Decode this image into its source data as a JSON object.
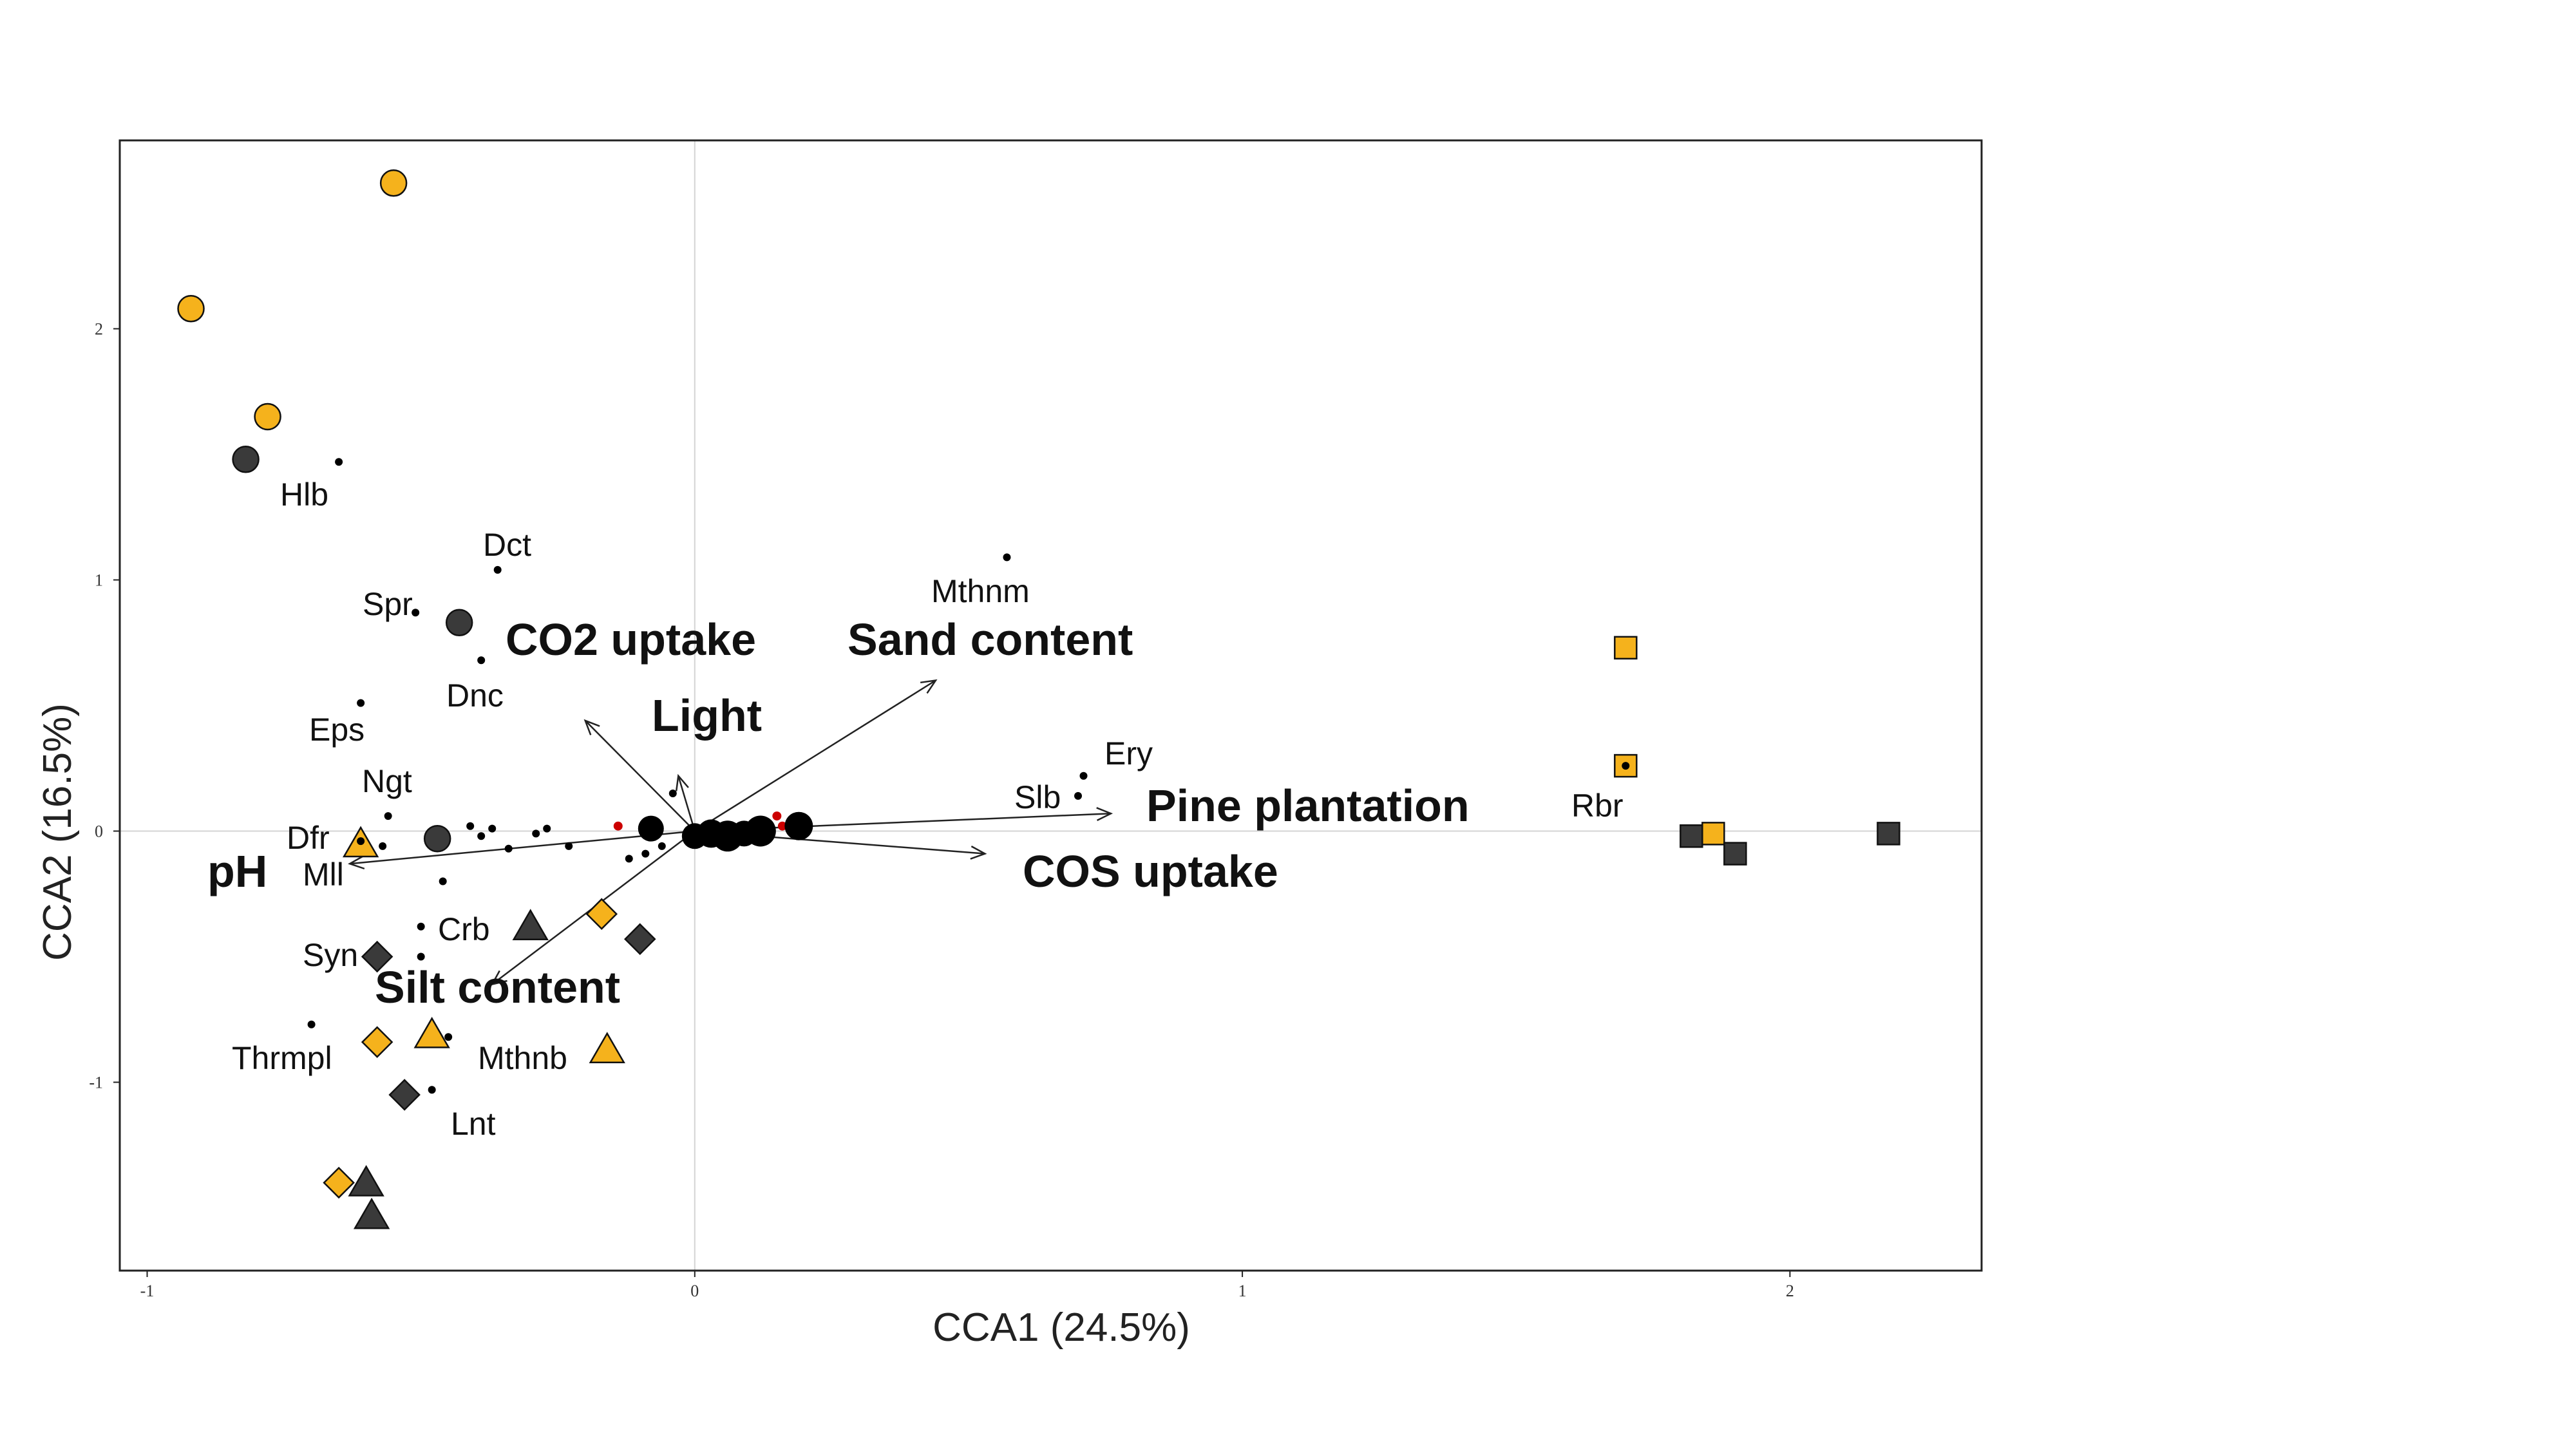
{
  "chart_data": {
    "type": "scatter",
    "xlabel": "CCA1 (24.5%)",
    "ylabel": "CCA2 (16.5%)",
    "xlim": [
      -1.05,
      2.35
    ],
    "ylim": [
      -1.75,
      2.75
    ],
    "x_ticks": [
      -1,
      0,
      1,
      2
    ],
    "y_ticks": [
      -1,
      0,
      1,
      2
    ],
    "zero_lines": true,
    "colors": {
      "orange": "#F5B21C",
      "dark": "#3A3A3A",
      "black": "#000000",
      "red": "#CC0000"
    },
    "sites": [
      {
        "x": -0.55,
        "y": 2.58,
        "shape": "circle",
        "color": "orange"
      },
      {
        "x": -0.92,
        "y": 2.08,
        "shape": "circle",
        "color": "orange"
      },
      {
        "x": -0.78,
        "y": 1.65,
        "shape": "circle",
        "color": "orange"
      },
      {
        "x": -0.82,
        "y": 1.48,
        "shape": "circle",
        "color": "dark"
      },
      {
        "x": -0.43,
        "y": 0.83,
        "shape": "circle",
        "color": "dark"
      },
      {
        "x": -0.47,
        "y": -0.03,
        "shape": "circle",
        "color": "dark"
      },
      {
        "x": -0.61,
        "y": -0.05,
        "shape": "triangle",
        "color": "orange"
      },
      {
        "x": -0.3,
        "y": -0.38,
        "shape": "triangle",
        "color": "dark"
      },
      {
        "x": -0.48,
        "y": -0.81,
        "shape": "triangle",
        "color": "orange"
      },
      {
        "x": -0.16,
        "y": -0.87,
        "shape": "triangle",
        "color": "orange"
      },
      {
        "x": -0.6,
        "y": -1.4,
        "shape": "triangle",
        "color": "dark"
      },
      {
        "x": -0.59,
        "y": -1.53,
        "shape": "triangle",
        "color": "dark"
      },
      {
        "x": -0.17,
        "y": -0.33,
        "shape": "diamond",
        "color": "orange"
      },
      {
        "x": -0.1,
        "y": -0.43,
        "shape": "diamond",
        "color": "dark"
      },
      {
        "x": -0.58,
        "y": -0.5,
        "shape": "diamond",
        "color": "dark"
      },
      {
        "x": -0.58,
        "y": -0.84,
        "shape": "diamond",
        "color": "orange"
      },
      {
        "x": -0.53,
        "y": -1.05,
        "shape": "diamond",
        "color": "dark"
      },
      {
        "x": -0.65,
        "y": -1.4,
        "shape": "diamond",
        "color": "orange"
      },
      {
        "x": 1.7,
        "y": 0.73,
        "shape": "square",
        "color": "orange"
      },
      {
        "x": 1.7,
        "y": 0.26,
        "shape": "square",
        "color": "orange"
      },
      {
        "x": 1.82,
        "y": -0.02,
        "shape": "square",
        "color": "dark"
      },
      {
        "x": 1.86,
        "y": -0.01,
        "shape": "square",
        "color": "orange"
      },
      {
        "x": 1.9,
        "y": -0.09,
        "shape": "square",
        "color": "dark"
      },
      {
        "x": 2.18,
        "y": -0.01,
        "shape": "square",
        "color": "dark"
      }
    ],
    "centroids": [
      {
        "x": -0.08,
        "y": 0.01,
        "size": 1.0
      },
      {
        "x": 0.0,
        "y": -0.02,
        "size": 1.0
      },
      {
        "x": 0.03,
        "y": -0.01,
        "size": 1.1
      },
      {
        "x": 0.06,
        "y": -0.02,
        "size": 1.2
      },
      {
        "x": 0.09,
        "y": -0.01,
        "size": 1.0
      },
      {
        "x": 0.12,
        "y": 0.0,
        "size": 1.2
      },
      {
        "x": 0.19,
        "y": 0.02,
        "size": 1.1
      }
    ],
    "species": [
      {
        "label": "Hlb",
        "x": -0.65,
        "y": 1.47
      },
      {
        "label": "Dct",
        "x": -0.36,
        "y": 1.04
      },
      {
        "label": "Spr",
        "x": -0.51,
        "y": 0.87
      },
      {
        "label": "Dnc",
        "x": -0.39,
        "y": 0.68
      },
      {
        "label": "Eps",
        "x": -0.61,
        "y": 0.51
      },
      {
        "label": "Ngt",
        "x": -0.56,
        "y": 0.06
      },
      {
        "label": "Dfr",
        "x": -0.61,
        "y": -0.04
      },
      {
        "label": "Mll",
        "x": -0.57,
        "y": -0.06
      },
      {
        "label": "Crb",
        "x": -0.5,
        "y": -0.38
      },
      {
        "label": "Syn",
        "x": -0.5,
        "y": -0.5
      },
      {
        "label": "Thrmpl",
        "x": -0.7,
        "y": -0.77
      },
      {
        "label": "Mthnb",
        "x": -0.45,
        "y": -0.82
      },
      {
        "label": "Lnt",
        "x": -0.48,
        "y": -1.03
      },
      {
        "label": "Mthnm",
        "x": 0.57,
        "y": 1.09
      },
      {
        "label": "Slb",
        "x": 0.7,
        "y": 0.14
      },
      {
        "label": "Ery",
        "x": 0.71,
        "y": 0.22
      },
      {
        "label": "Rbr",
        "x": 1.7,
        "y": 0.26
      }
    ],
    "minor_points": [
      {
        "x": -0.41,
        "y": 0.02
      },
      {
        "x": -0.39,
        "y": -0.02
      },
      {
        "x": -0.37,
        "y": 0.01
      },
      {
        "x": -0.34,
        "y": -0.07
      },
      {
        "x": -0.29,
        "y": -0.01
      },
      {
        "x": -0.27,
        "y": 0.01
      },
      {
        "x": -0.23,
        "y": -0.06
      },
      {
        "x": -0.46,
        "y": -0.2
      },
      {
        "x": -0.04,
        "y": 0.15
      },
      {
        "x": -0.06,
        "y": -0.06
      },
      {
        "x": -0.09,
        "y": -0.09
      },
      {
        "x": -0.12,
        "y": -0.11
      }
    ],
    "red_points": [
      {
        "x": -0.14,
        "y": 0.02
      },
      {
        "x": 0.15,
        "y": 0.06
      },
      {
        "x": 0.16,
        "y": 0.02
      }
    ],
    "env_vectors": [
      {
        "label": "CO2 uptake",
        "x": -0.2,
        "y": 0.44
      },
      {
        "label": "Light",
        "x": -0.03,
        "y": 0.22
      },
      {
        "label": "Sand content",
        "x": 0.44,
        "y": 0.6
      },
      {
        "label": "Pine plantation",
        "x": 0.76,
        "y": 0.07
      },
      {
        "label": "COS uptake",
        "x": 0.53,
        "y": -0.09
      },
      {
        "label": "pH",
        "x": -0.63,
        "y": -0.13
      },
      {
        "label": "Silt content",
        "x": -0.37,
        "y": -0.61
      }
    ]
  }
}
